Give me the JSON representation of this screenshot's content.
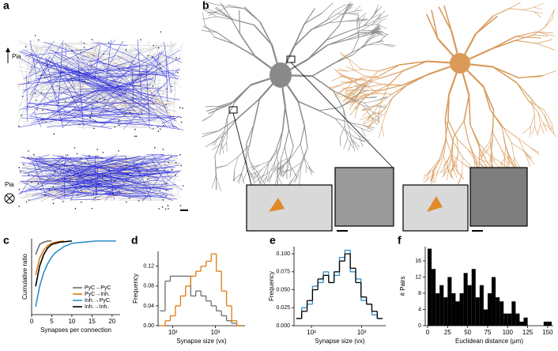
{
  "figure": {
    "panel_a_label": "a",
    "panel_b_label": "b",
    "pia_labels": [
      "Pia",
      "Pia"
    ]
  },
  "chart_data": [
    {
      "type": "line",
      "panel_label": "c",
      "xlabel": "Synapses per connection",
      "ylabel": "Cumulative ratio",
      "xlim": [
        0,
        22
      ],
      "ylim": [
        0.35,
        1.02
      ],
      "xticks": [
        0,
        5,
        10,
        15,
        20
      ],
      "legend": "lower right",
      "series": [
        {
          "name": "PyC→PyC",
          "color": "#6d6d6d",
          "x": [
            1,
            2,
            3,
            4,
            5
          ],
          "values": [
            0.88,
            0.97,
            0.99,
            1.0,
            1.0
          ]
        },
        {
          "name": "PyC→Inh.",
          "color": "#e07b10",
          "x": [
            1,
            2,
            3,
            4,
            5,
            6,
            8
          ],
          "values": [
            0.7,
            0.85,
            0.92,
            0.96,
            0.98,
            0.99,
            1.0
          ]
        },
        {
          "name": "Inh.→PyC.",
          "color": "#2a8fc7",
          "x": [
            1,
            2,
            3,
            4,
            5,
            6,
            8,
            10,
            13,
            16,
            21
          ],
          "values": [
            0.42,
            0.6,
            0.72,
            0.8,
            0.86,
            0.9,
            0.95,
            0.98,
            0.99,
            1.0,
            1.0
          ]
        },
        {
          "name": "Inh.→Inh.",
          "color": "#000000",
          "x": [
            1,
            2,
            3,
            4,
            5,
            7,
            10
          ],
          "values": [
            0.6,
            0.78,
            0.88,
            0.94,
            0.97,
            0.99,
            1.0
          ]
        }
      ]
    },
    {
      "type": "step_histogram",
      "panel_label": "d",
      "xlabel": "Synapse size (vx)",
      "ylabel": "Frequency",
      "xscale": "log",
      "xlim": [
        45,
        5000
      ],
      "ylim": [
        0,
        0.15
      ],
      "xticks": [
        {
          "value": 100,
          "label": "10²"
        },
        {
          "value": 1000,
          "label": "10³"
        }
      ],
      "yticks": [
        {
          "value": 0,
          "label": "0.00"
        },
        0.04,
        0.08,
        0.12
      ],
      "bins": [
        50,
        66,
        87,
        115,
        152,
        200,
        264,
        348,
        459,
        606,
        800,
        1056,
        1393,
        1838,
        2426,
        3202,
        4226
      ],
      "series": [
        {
          "color": "#6d6d6d",
          "values": [
            0.03,
            0.09,
            0.1,
            0.1,
            0.1,
            0.1,
            0.06,
            0.07,
            0.06,
            0.05,
            0.04,
            0.03,
            0.02,
            0.01,
            0.005,
            0.0
          ]
        },
        {
          "color": "#e07b10",
          "values": [
            0.0,
            0.01,
            0.02,
            0.04,
            0.06,
            0.08,
            0.1,
            0.11,
            0.12,
            0.13,
            0.145,
            0.11,
            0.07,
            0.04,
            0.01,
            0.0
          ]
        }
      ]
    },
    {
      "type": "step_histogram",
      "panel_label": "e",
      "xlabel": "Synapse size (vx)",
      "ylabel": "Frequency",
      "xscale": "log",
      "xlim": [
        45,
        3000
      ],
      "ylim": [
        0,
        0.11
      ],
      "xticks": [
        {
          "value": 100,
          "label": "10²"
        },
        {
          "value": 1000,
          "label": "10³"
        }
      ],
      "yticks": [
        {
          "value": 0,
          "label": "0.000"
        },
        0.025,
        {
          "value": 0.05,
          "label": "0.050"
        },
        0.075,
        {
          "value": 0.1,
          "label": "0.100"
        }
      ],
      "bins": [
        50,
        64,
        82,
        105,
        134,
        172,
        220,
        282,
        361,
        462,
        592,
        758,
        970,
        1242,
        1590,
        2035,
        2605
      ],
      "series": [
        {
          "color": "#2a8fc7",
          "values": [
            0.01,
            0.025,
            0.03,
            0.055,
            0.06,
            0.075,
            0.06,
            0.07,
            0.095,
            0.105,
            0.075,
            0.065,
            0.035,
            0.03,
            0.015,
            0.01
          ]
        },
        {
          "color": "#000000",
          "values": [
            0.01,
            0.02,
            0.035,
            0.05,
            0.065,
            0.07,
            0.06,
            0.075,
            0.09,
            0.1,
            0.08,
            0.06,
            0.04,
            0.03,
            0.02,
            0.01
          ]
        }
      ]
    },
    {
      "type": "histogram",
      "panel_label": "f",
      "xlabel": "Euclidean distance (μm)",
      "ylabel": "# Pairs",
      "xlim": [
        -3,
        157
      ],
      "ylim": [
        0,
        19.5
      ],
      "xticks": [
        0,
        25,
        50,
        75,
        100,
        125,
        150
      ],
      "yticks": [
        0,
        4,
        8,
        12,
        16
      ],
      "color": "#000000",
      "bins": [
        0,
        5,
        10,
        15,
        20,
        25,
        30,
        35,
        40,
        45,
        50,
        55,
        60,
        65,
        70,
        75,
        80,
        85,
        90,
        95,
        100,
        105,
        110,
        115,
        120,
        125,
        130,
        135,
        140,
        145,
        150,
        155
      ],
      "values": [
        19,
        14,
        8,
        10,
        7,
        12,
        8,
        6,
        8,
        13,
        10,
        14,
        7,
        10,
        4,
        8,
        12,
        7,
        6,
        3,
        3,
        6,
        3,
        1,
        2,
        0,
        0,
        0,
        0,
        1,
        1
      ]
    }
  ]
}
